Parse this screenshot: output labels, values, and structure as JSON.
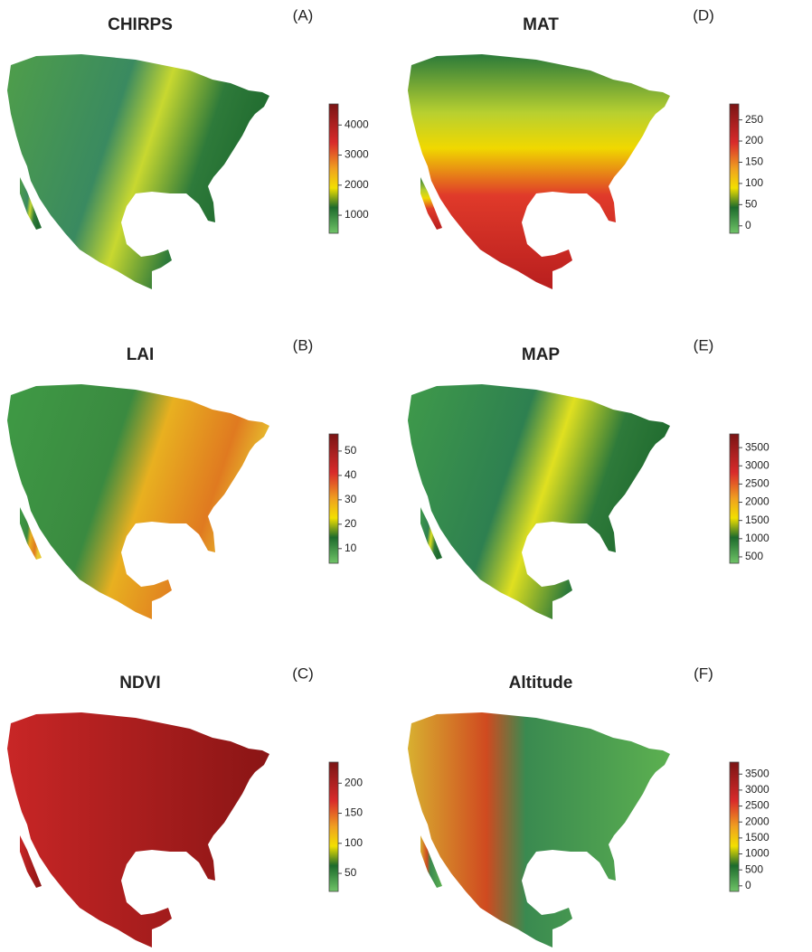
{
  "panels": [
    {
      "title": "CHIRPS",
      "letter": "(A)",
      "colorbar_ticks": [
        1000,
        2000,
        3000,
        4000
      ]
    },
    {
      "title": "LAI",
      "letter": "(B)",
      "colorbar_ticks": [
        10,
        20,
        30,
        40,
        50
      ]
    },
    {
      "title": "NDVI",
      "letter": "(C)",
      "colorbar_ticks": [
        50,
        100,
        150,
        200
      ]
    },
    {
      "title": "MAT",
      "letter": "(D)",
      "colorbar_ticks": [
        0,
        50,
        100,
        150,
        200,
        250
      ]
    },
    {
      "title": "MAP",
      "letter": "(E)",
      "colorbar_ticks": [
        500,
        1000,
        1500,
        2000,
        2500,
        3000,
        3500
      ]
    },
    {
      "title": "Altitude",
      "letter": "(F)",
      "colorbar_ticks": [
        0,
        500,
        1000,
        1500,
        2000,
        2500,
        3000,
        3500
      ]
    }
  ]
}
